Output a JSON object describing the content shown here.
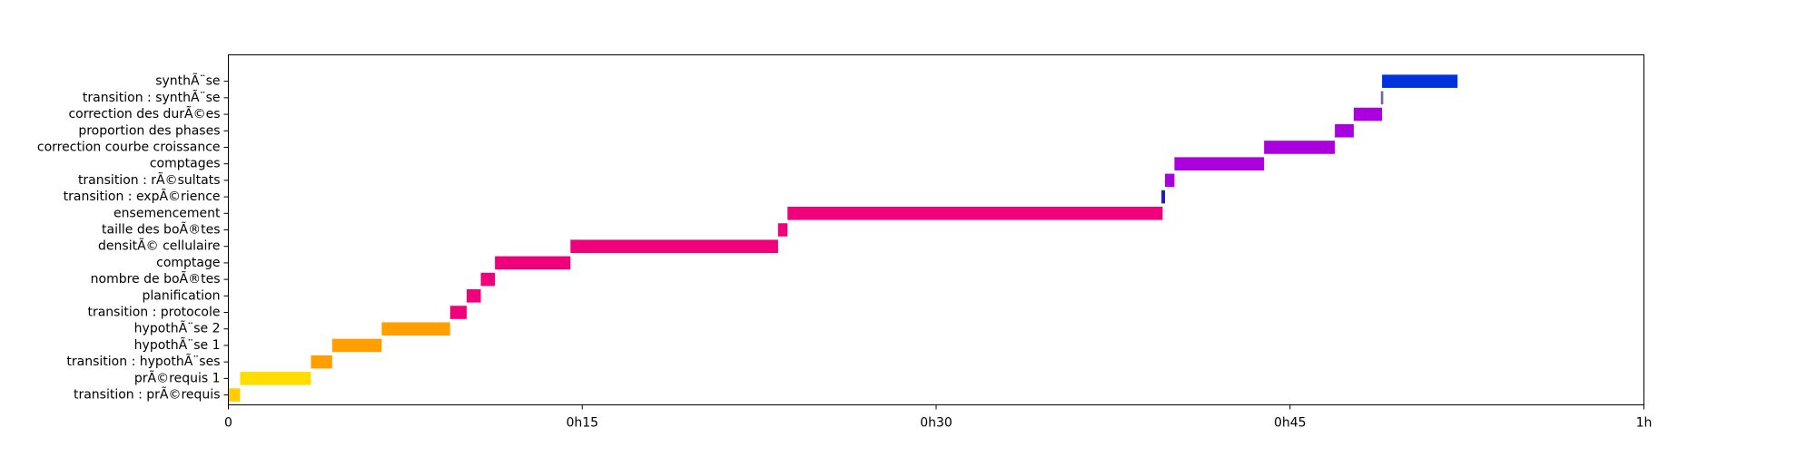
{
  "chart_data": {
    "type": "gantt",
    "title": "",
    "xlabel": "",
    "ylabel": "",
    "x_unit": "minutes",
    "xlim": [
      0,
      60
    ],
    "xticks": [
      {
        "value": 0,
        "label": "0"
      },
      {
        "value": 15,
        "label": "0h15"
      },
      {
        "value": 30,
        "label": "0h30"
      },
      {
        "value": 45,
        "label": "0h45"
      },
      {
        "value": 60,
        "label": "1h"
      }
    ],
    "grid": false,
    "legend": "none",
    "tasks": [
      {
        "label": "transition : prÃ©requis",
        "start": 0.0,
        "end": 0.5,
        "color": "#FFCC00"
      },
      {
        "label": "prÃ©requis 1",
        "start": 0.5,
        "end": 3.5,
        "color": "#FFDD00"
      },
      {
        "label": "transition : hypothÃ¨ses",
        "start": 3.5,
        "end": 4.4,
        "color": "#FFA000"
      },
      {
        "label": "hypothÃ¨se 1",
        "start": 4.4,
        "end": 6.5,
        "color": "#FFA000"
      },
      {
        "label": "hypothÃ¨se 2",
        "start": 6.5,
        "end": 9.4,
        "color": "#FFA000"
      },
      {
        "label": "transition : protocole",
        "start": 9.4,
        "end": 10.1,
        "color": "#F0007A"
      },
      {
        "label": "planification",
        "start": 10.1,
        "end": 10.7,
        "color": "#F0007A"
      },
      {
        "label": "nombre de boÃ®tes",
        "start": 10.7,
        "end": 11.3,
        "color": "#F0007A"
      },
      {
        "label": "comptage",
        "start": 11.3,
        "end": 14.5,
        "color": "#F0007A"
      },
      {
        "label": "densitÃ© cellulaire",
        "start": 14.5,
        "end": 23.3,
        "color": "#F0007A"
      },
      {
        "label": "taille des boÃ®tes",
        "start": 23.3,
        "end": 23.7,
        "color": "#F0007A"
      },
      {
        "label": "ensemencement",
        "start": 23.7,
        "end": 39.6,
        "color": "#F0007A"
      },
      {
        "label": "transition : expÃ©rience",
        "start": 39.55,
        "end": 39.7,
        "color": "#1A1AB8"
      },
      {
        "label": "transition : rÃ©sultats",
        "start": 39.7,
        "end": 40.1,
        "color": "#AA00DD"
      },
      {
        "label": "comptages",
        "start": 40.1,
        "end": 43.9,
        "color": "#AA00DD"
      },
      {
        "label": "correction courbe croissance",
        "start": 43.9,
        "end": 46.9,
        "color": "#AA00DD"
      },
      {
        "label": "proportion des phases",
        "start": 46.9,
        "end": 47.7,
        "color": "#AA00DD"
      },
      {
        "label": "correction des durÃ©es",
        "start": 47.7,
        "end": 48.9,
        "color": "#AA00DD"
      },
      {
        "label": "transition : synthÃ¨se",
        "start": 48.85,
        "end": 48.95,
        "color": "#6A6A9A"
      },
      {
        "label": "synthÃ¨se",
        "start": 48.9,
        "end": 52.1,
        "color": "#0033DD"
      }
    ]
  }
}
